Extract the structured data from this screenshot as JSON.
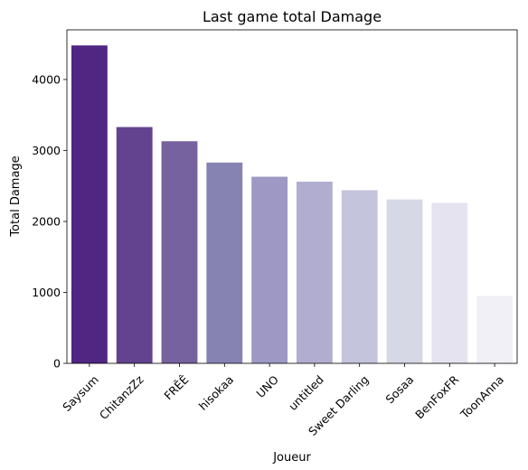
{
  "chart_data": {
    "type": "bar",
    "title": "Last game total Damage",
    "xlabel": "Joueur",
    "ylabel": "Total Damage",
    "categories": [
      "Saysum",
      "ChitanzZz",
      "FRÊÊ",
      "hisokaa",
      "UNO",
      "untitled",
      "Sweet Darling",
      "Sosaa",
      "BenFoxFR",
      "ToonAnna"
    ],
    "values": [
      4480,
      3330,
      3130,
      2830,
      2630,
      2560,
      2440,
      2310,
      2260,
      950
    ],
    "ylim": [
      0,
      4700
    ],
    "yticks": [
      0,
      1000,
      2000,
      3000,
      4000
    ],
    "grid": false,
    "colors": [
      "#4f2682",
      "#63428f",
      "#75629f",
      "#8683b3",
      "#9d99c4",
      "#b0adcf",
      "#c4c4dc",
      "#d7d8e6",
      "#e4e3ef",
      "#f1f0f6"
    ]
  }
}
